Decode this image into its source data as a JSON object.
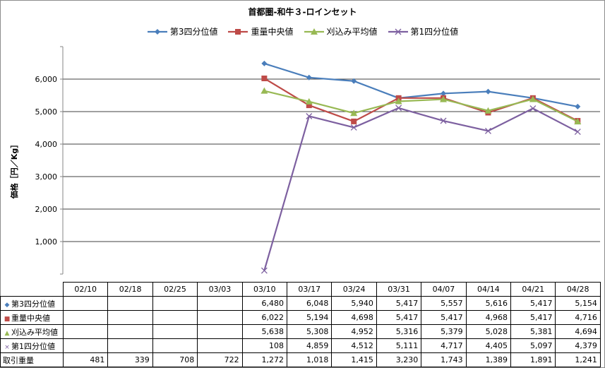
{
  "chart_data": {
    "type": "line",
    "title": "首都圏-和牛３-ロインセット",
    "ylabel": "価格［円／Kg］",
    "xlabel": "",
    "ylim": [
      0,
      7000
    ],
    "yticks": [
      1000,
      2000,
      3000,
      4000,
      5000,
      6000
    ],
    "ytick_labels": [
      "1,000",
      "2,000",
      "3,000",
      "4,000",
      "5,000",
      "6,000"
    ],
    "categories": [
      "02/10",
      "02/18",
      "02/25",
      "03/03",
      "03/10",
      "03/17",
      "03/24",
      "03/31",
      "04/07",
      "04/14",
      "04/21",
      "04/28"
    ],
    "grid": true,
    "legend": "top-center",
    "series": [
      {
        "name": "第3四分位値",
        "color": "#4a7ebb",
        "marker": "diamond",
        "values": [
          null,
          null,
          null,
          null,
          6480,
          6048,
          5940,
          5417,
          5557,
          5616,
          5417,
          5154
        ],
        "labels": [
          "",
          "",
          "",
          "",
          "6,480",
          "6,048",
          "5,940",
          "5,417",
          "5,557",
          "5,616",
          "5,417",
          "5,154"
        ]
      },
      {
        "name": "重量中央値",
        "color": "#be4b48",
        "marker": "square",
        "values": [
          null,
          null,
          null,
          null,
          6022,
          5194,
          4698,
          5417,
          5417,
          4968,
          5417,
          4716
        ],
        "labels": [
          "",
          "",
          "",
          "",
          "6,022",
          "5,194",
          "4,698",
          "5,417",
          "5,417",
          "4,968",
          "5,417",
          "4,716"
        ]
      },
      {
        "name": "刈込み平均値",
        "color": "#98b954",
        "marker": "triangle",
        "values": [
          null,
          null,
          null,
          null,
          5638,
          5308,
          4952,
          5316,
          5379,
          5028,
          5381,
          4694
        ],
        "labels": [
          "",
          "",
          "",
          "",
          "5,638",
          "5,308",
          "4,952",
          "5,316",
          "5,379",
          "5,028",
          "5,381",
          "4,694"
        ]
      },
      {
        "name": "第1四分位値",
        "color": "#7d60a0",
        "marker": "x",
        "values": [
          null,
          null,
          null,
          null,
          108,
          4859,
          4512,
          5111,
          4717,
          4405,
          5097,
          4379
        ],
        "labels": [
          "",
          "",
          "",
          "",
          "108",
          "4,859",
          "4,512",
          "5,111",
          "4,717",
          "4,405",
          "5,097",
          "4,379"
        ]
      }
    ],
    "extra_rows": [
      {
        "name": "取引重量",
        "values": [
          481,
          339,
          708,
          722,
          1272,
          1018,
          1415,
          3230,
          1743,
          1389,
          1891,
          1241
        ],
        "labels": [
          "481",
          "339",
          "708",
          "722",
          "1,272",
          "1,018",
          "1,415",
          "3,230",
          "1,743",
          "1,389",
          "1,891",
          "1,241"
        ]
      }
    ]
  }
}
